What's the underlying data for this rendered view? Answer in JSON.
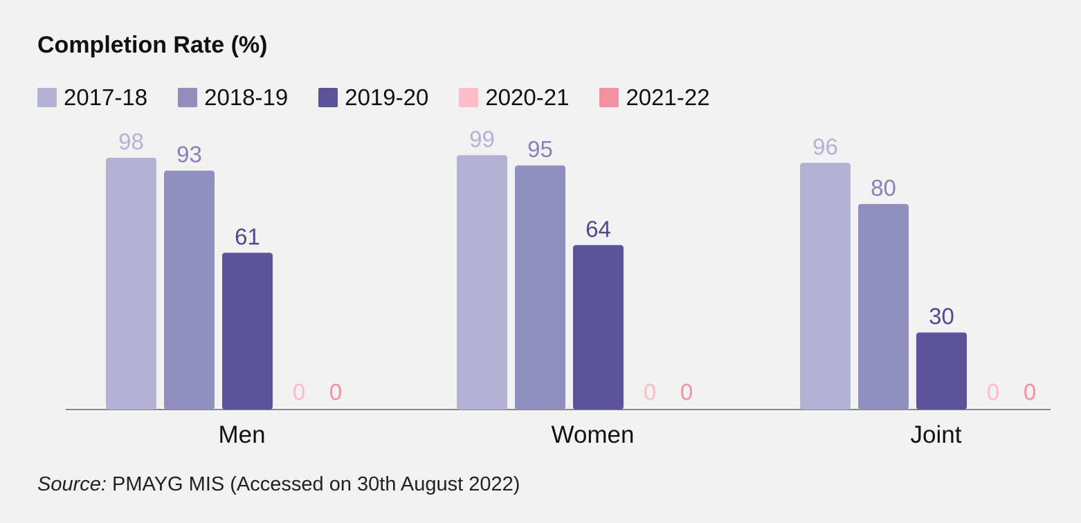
{
  "chart_data": {
    "type": "bar",
    "title": "Completion Rate (%)",
    "categories": [
      "Men",
      "Women",
      "Joint"
    ],
    "series": [
      {
        "name": "2017-18",
        "color": "#b3b2d5",
        "label_color": "#b3b2d5",
        "values": [
          98,
          99,
          96
        ]
      },
      {
        "name": "2018-19",
        "color": "#918fbe",
        "label_color": "#8583b8",
        "values": [
          93,
          95,
          80
        ]
      },
      {
        "name": "2019-20",
        "color": "#5b549b",
        "label_color": "#4f4893",
        "values": [
          61,
          64,
          30
        ]
      },
      {
        "name": "2020-21",
        "color": "#fbbcc8",
        "label_color": "#fbbcc8",
        "values": [
          0,
          0,
          0
        ]
      },
      {
        "name": "2021-22",
        "color": "#f58fa2",
        "label_color": "#f58fa2",
        "values": [
          0,
          0,
          0
        ]
      }
    ],
    "ylim": [
      0,
      100
    ],
    "grid": false,
    "legend_position": "top-left"
  },
  "source": {
    "prefix": "Source:",
    "text": " PMAYG MIS (Accessed on 30th August 2022)"
  }
}
